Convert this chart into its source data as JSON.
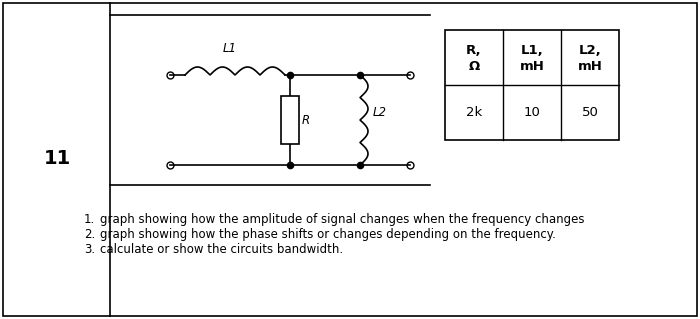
{
  "bg_color": "#ffffff",
  "number_label": "11",
  "table_headers_line1": [
    "R,",
    "L1,",
    "L2,"
  ],
  "table_headers_line2": [
    "Ω",
    "mH",
    "mH"
  ],
  "table_values": [
    "2k",
    "10",
    "50"
  ],
  "items_text": [
    "graph showing how the amplitude of signal changes when the frequency changes",
    "graph showing how the phase shifts or changes depending on the frequency.",
    "calculate or show the circuits bandwidth."
  ],
  "font_size_number": 14,
  "font_size_items": 8.5,
  "font_size_table": 9.5,
  "font_size_label": 8.5
}
